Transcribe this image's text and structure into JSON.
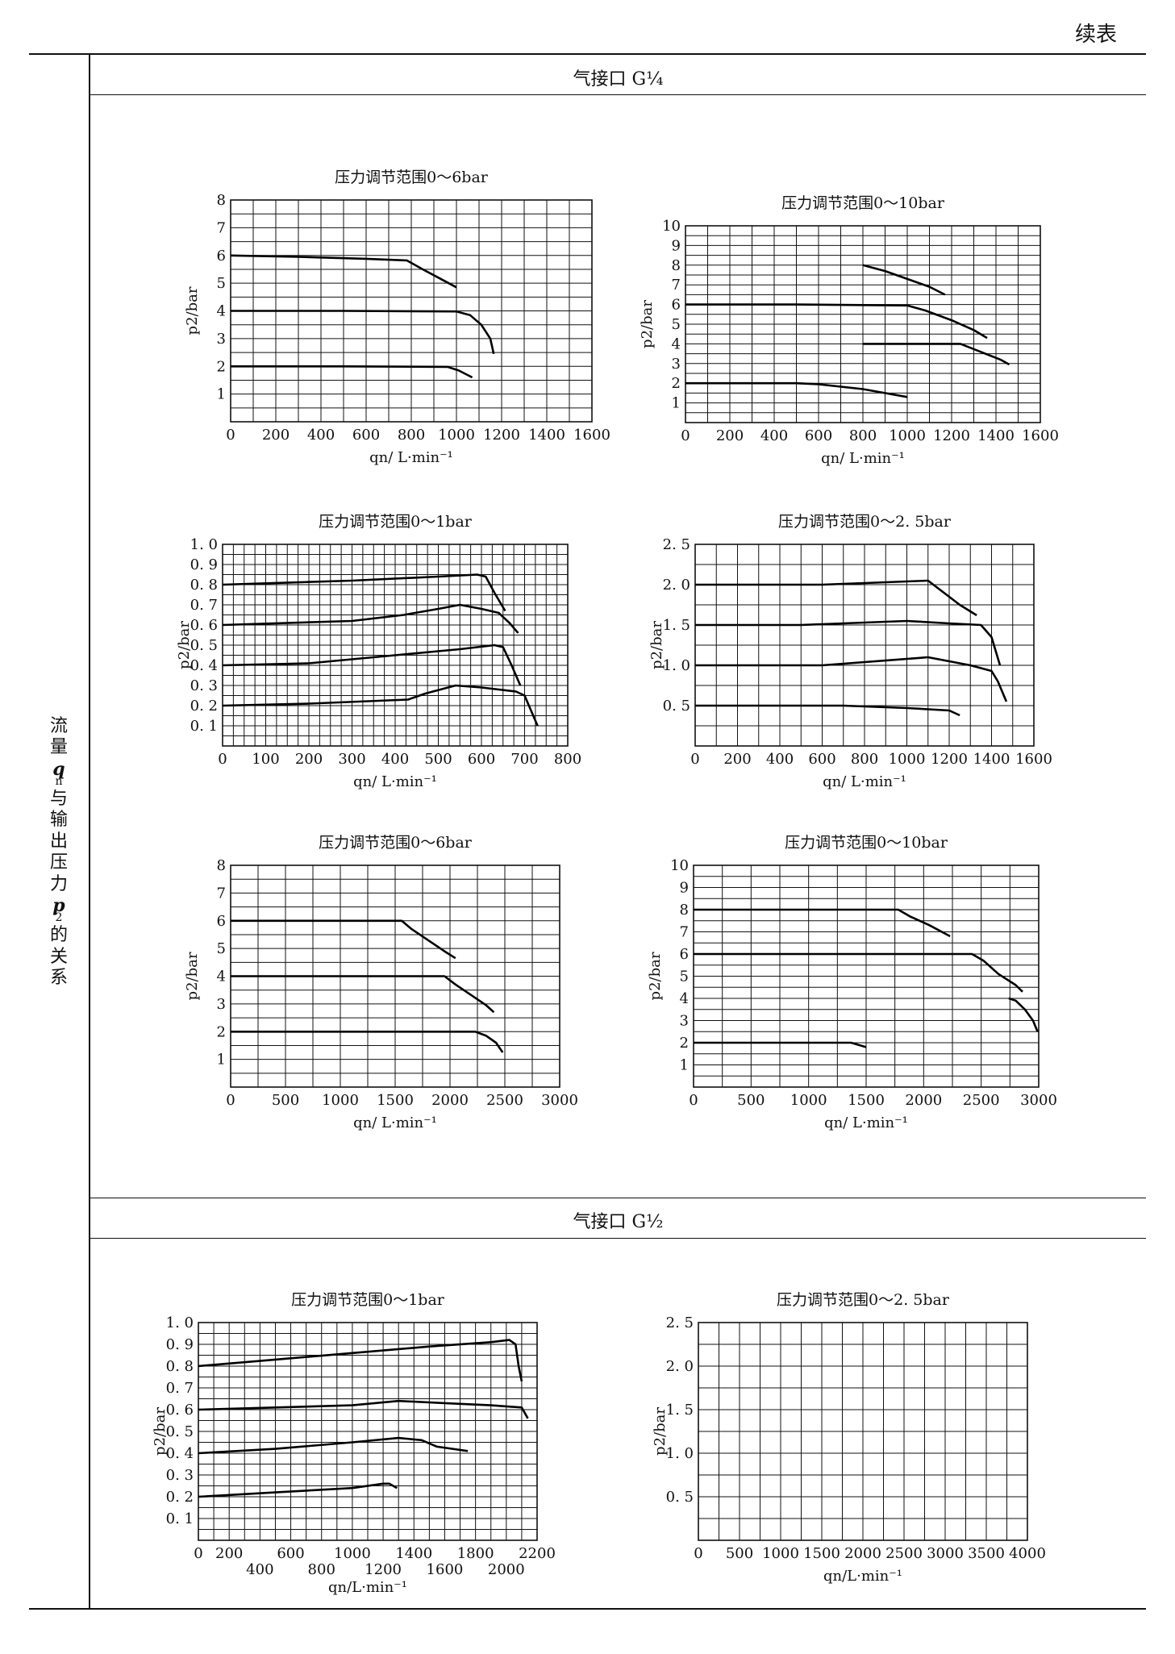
{
  "header": {
    "continued_label": "续表"
  },
  "side_label": {
    "chars": [
      "流",
      "量",
      "q",
      "n",
      "与",
      "输",
      "出",
      "压",
      "力",
      "p",
      "2",
      "的",
      "关",
      "系"
    ]
  },
  "sections": [
    {
      "title": "气接口 G¼"
    },
    {
      "title": "气接口 G½"
    }
  ],
  "chart_data": [
    {
      "type": "line",
      "title": "压力调节范围0～6bar",
      "xlabel": "qn/ L·min⁻¹",
      "ylabel": "p2/bar",
      "xlim": [
        0,
        1600
      ],
      "ylim": [
        0,
        8
      ],
      "xticks": [
        0,
        200,
        400,
        600,
        800,
        1000,
        1200,
        1400,
        1600
      ],
      "yticks": [
        1,
        2,
        3,
        4,
        5,
        6,
        7,
        8
      ],
      "ytick_labels": [
        "1",
        "2",
        "3",
        "4",
        "5",
        "6",
        "7",
        "8"
      ],
      "xgrid_step": 100,
      "ygrid_step": 0.5,
      "grid": true,
      "series": [
        {
          "points": [
            [
              0,
              6.0
            ],
            [
              300,
              5.95
            ],
            [
              600,
              5.88
            ],
            [
              780,
              5.82
            ],
            [
              850,
              5.5
            ],
            [
              920,
              5.2
            ],
            [
              1000,
              4.85
            ]
          ]
        },
        {
          "points": [
            [
              0,
              4.0
            ],
            [
              500,
              4.0
            ],
            [
              1000,
              3.98
            ],
            [
              1060,
              3.85
            ],
            [
              1110,
              3.5
            ],
            [
              1150,
              3.0
            ],
            [
              1165,
              2.45
            ]
          ]
        },
        {
          "points": [
            [
              0,
              2.0
            ],
            [
              500,
              2.0
            ],
            [
              960,
              1.98
            ],
            [
              1010,
              1.85
            ],
            [
              1070,
              1.6
            ]
          ]
        }
      ]
    },
    {
      "type": "line",
      "title": "压力调节范围0～10bar",
      "xlabel": "qn/ L·min⁻¹",
      "ylabel": "p2/bar",
      "xlim": [
        0,
        1600
      ],
      "ylim": [
        0,
        10
      ],
      "xticks": [
        0,
        200,
        400,
        600,
        800,
        1000,
        1200,
        1400,
        1600
      ],
      "yticks": [
        1,
        2,
        3,
        4,
        5,
        6,
        7,
        8,
        9,
        10
      ],
      "ytick_labels": [
        "1",
        "2",
        "3",
        "4",
        "5",
        "6",
        "7",
        "8",
        "9",
        "10"
      ],
      "xgrid_step": 100,
      "ygrid_step": 0.5,
      "grid": true,
      "series": [
        {
          "points": [
            [
              800,
              8.0
            ],
            [
              900,
              7.7
            ],
            [
              1000,
              7.3
            ],
            [
              1100,
              6.9
            ],
            [
              1170,
              6.5
            ]
          ]
        },
        {
          "points": [
            [
              0,
              6.0
            ],
            [
              500,
              6.0
            ],
            [
              1000,
              5.95
            ],
            [
              1080,
              5.7
            ],
            [
              1200,
              5.2
            ],
            [
              1300,
              4.7
            ],
            [
              1360,
              4.3
            ]
          ]
        },
        {
          "points": [
            [
              800,
              4.0
            ],
            [
              1000,
              4.0
            ],
            [
              1240,
              4.0
            ],
            [
              1330,
              3.6
            ],
            [
              1420,
              3.2
            ],
            [
              1460,
              2.95
            ]
          ]
        },
        {
          "points": [
            [
              0,
              2.0
            ],
            [
              500,
              2.0
            ],
            [
              600,
              1.95
            ],
            [
              800,
              1.7
            ],
            [
              1000,
              1.3
            ]
          ]
        }
      ]
    },
    {
      "type": "line",
      "title": "压力调节范围0～1bar",
      "xlabel": "qn/ L·min⁻¹",
      "ylabel": "p2/bar",
      "xlim": [
        0,
        800
      ],
      "ylim": [
        0,
        1.0
      ],
      "xticks": [
        0,
        100,
        200,
        300,
        400,
        500,
        600,
        700,
        800
      ],
      "yticks": [
        0.1,
        0.2,
        0.3,
        0.4,
        0.5,
        0.6,
        0.7,
        0.8,
        0.9,
        1.0
      ],
      "ytick_labels": [
        "0. 1",
        "0. 2",
        "0. 3",
        "0. 4",
        "0. 5",
        "0. 6",
        "0. 7",
        "0. 8",
        "0. 9",
        "1. 0"
      ],
      "xgrid_step": 25,
      "ygrid_step": 0.05,
      "grid": true,
      "series": [
        {
          "points": [
            [
              0,
              0.8
            ],
            [
              300,
              0.82
            ],
            [
              500,
              0.84
            ],
            [
              590,
              0.85
            ],
            [
              610,
              0.84
            ],
            [
              630,
              0.76
            ],
            [
              655,
              0.67
            ]
          ]
        },
        {
          "points": [
            [
              0,
              0.6
            ],
            [
              300,
              0.62
            ],
            [
              420,
              0.65
            ],
            [
              500,
              0.68
            ],
            [
              550,
              0.7
            ],
            [
              600,
              0.68
            ],
            [
              640,
              0.66
            ],
            [
              665,
              0.61
            ],
            [
              685,
              0.56
            ]
          ]
        },
        {
          "points": [
            [
              0,
              0.4
            ],
            [
              200,
              0.41
            ],
            [
              400,
              0.45
            ],
            [
              550,
              0.48
            ],
            [
              630,
              0.5
            ],
            [
              650,
              0.49
            ],
            [
              670,
              0.4
            ],
            [
              690,
              0.3
            ]
          ]
        },
        {
          "points": [
            [
              0,
              0.2
            ],
            [
              200,
              0.21
            ],
            [
              430,
              0.23
            ],
            [
              470,
              0.26
            ],
            [
              540,
              0.3
            ],
            [
              600,
              0.29
            ],
            [
              680,
              0.27
            ],
            [
              700,
              0.25
            ],
            [
              730,
              0.1
            ]
          ]
        }
      ]
    },
    {
      "type": "line",
      "title": "压力调节范围0～2. 5bar",
      "xlabel": "qn/ L·min⁻¹",
      "ylabel": "p2/bar",
      "xlim": [
        0,
        1600
      ],
      "ylim": [
        0,
        2.5
      ],
      "xticks": [
        0,
        200,
        400,
        600,
        800,
        1000,
        1200,
        1400,
        1600
      ],
      "yticks": [
        0.5,
        1.0,
        1.5,
        2.0,
        2.5
      ],
      "ytick_labels": [
        "0. 5",
        "1. 0",
        "1. 5",
        "2. 0",
        "2. 5"
      ],
      "xgrid_step": 100,
      "ygrid_step": 0.25,
      "grid": true,
      "series": [
        {
          "points": [
            [
              0,
              2.0
            ],
            [
              600,
              2.0
            ],
            [
              1100,
              2.05
            ],
            [
              1150,
              1.95
            ],
            [
              1250,
              1.75
            ],
            [
              1330,
              1.62
            ]
          ]
        },
        {
          "points": [
            [
              0,
              1.5
            ],
            [
              500,
              1.5
            ],
            [
              1000,
              1.55
            ],
            [
              1200,
              1.52
            ],
            [
              1350,
              1.5
            ],
            [
              1400,
              1.35
            ],
            [
              1440,
              1.0
            ]
          ]
        },
        {
          "points": [
            [
              0,
              1.0
            ],
            [
              600,
              1.0
            ],
            [
              1100,
              1.1
            ],
            [
              1300,
              1.0
            ],
            [
              1400,
              0.93
            ],
            [
              1430,
              0.8
            ],
            [
              1470,
              0.55
            ]
          ]
        },
        {
          "points": [
            [
              0,
              0.5
            ],
            [
              700,
              0.5
            ],
            [
              1000,
              0.47
            ],
            [
              1200,
              0.44
            ],
            [
              1250,
              0.38
            ]
          ]
        }
      ]
    },
    {
      "type": "line",
      "title": "压力调节范围0～6bar",
      "xlabel": "qn/ L·min⁻¹",
      "ylabel": "p2/bar",
      "xlim": [
        0,
        3000
      ],
      "ylim": [
        0,
        8
      ],
      "xticks": [
        0,
        500,
        1000,
        1500,
        2000,
        2500,
        3000
      ],
      "yticks": [
        1,
        2,
        3,
        4,
        5,
        6,
        7,
        8
      ],
      "ytick_labels": [
        "1",
        "2",
        "3",
        "4",
        "5",
        "6",
        "7",
        "8"
      ],
      "xgrid_step": 250,
      "ygrid_step": 0.5,
      "grid": true,
      "series": [
        {
          "points": [
            [
              0,
              6.0
            ],
            [
              1000,
              6.0
            ],
            [
              1560,
              6.0
            ],
            [
              1650,
              5.7
            ],
            [
              1800,
              5.3
            ],
            [
              1950,
              4.9
            ],
            [
              2050,
              4.65
            ]
          ]
        },
        {
          "points": [
            [
              0,
              4.0
            ],
            [
              1000,
              4.0
            ],
            [
              1950,
              4.0
            ],
            [
              2050,
              3.7
            ],
            [
              2200,
              3.3
            ],
            [
              2330,
              2.95
            ],
            [
              2400,
              2.7
            ]
          ]
        },
        {
          "points": [
            [
              0,
              2.0
            ],
            [
              1200,
              2.0
            ],
            [
              2230,
              2.0
            ],
            [
              2330,
              1.85
            ],
            [
              2420,
              1.6
            ],
            [
              2480,
              1.25
            ]
          ]
        }
      ]
    },
    {
      "type": "line",
      "title": "压力调节范围0～10bar",
      "xlabel": "qn/ L·min⁻¹",
      "ylabel": "p2/bar",
      "xlim": [
        0,
        3000
      ],
      "ylim": [
        0,
        10
      ],
      "xticks": [
        0,
        500,
        1000,
        1500,
        2000,
        2500,
        3000
      ],
      "yticks": [
        1,
        2,
        3,
        4,
        5,
        6,
        7,
        8,
        9,
        10
      ],
      "ytick_labels": [
        "1",
        "2",
        "3",
        "4",
        "5",
        "6",
        "7",
        "8",
        "9",
        "10"
      ],
      "xgrid_step": 250,
      "ygrid_step": 0.5,
      "grid": true,
      "series": [
        {
          "points": [
            [
              0,
              8.0
            ],
            [
              1000,
              8.0
            ],
            [
              1780,
              8.0
            ],
            [
              1880,
              7.7
            ],
            [
              2050,
              7.3
            ],
            [
              2230,
              6.8
            ]
          ]
        },
        {
          "points": [
            [
              0,
              6.0
            ],
            [
              1000,
              6.0
            ],
            [
              2420,
              6.0
            ],
            [
              2520,
              5.7
            ],
            [
              2650,
              5.1
            ],
            [
              2800,
              4.6
            ],
            [
              2860,
              4.3
            ]
          ]
        },
        {
          "points": [
            [
              2740,
              4.0
            ],
            [
              2800,
              3.9
            ],
            [
              2880,
              3.5
            ],
            [
              2950,
              3.0
            ],
            [
              2990,
              2.5
            ]
          ]
        },
        {
          "points": [
            [
              0,
              2.0
            ],
            [
              700,
              2.0
            ],
            [
              1370,
              2.0
            ],
            [
              1500,
              1.8
            ]
          ]
        }
      ]
    },
    {
      "type": "line",
      "title": "压力调节范围0～1bar",
      "xlabel": "qn/L·min⁻¹",
      "ylabel": "p2/bar",
      "xlim": [
        0,
        2200
      ],
      "ylim": [
        0,
        1.0
      ],
      "xticks": [
        0,
        200,
        400,
        600,
        800,
        1000,
        1200,
        1400,
        1600,
        1800,
        2000,
        2200
      ],
      "xtick_labels_upper": [
        "0",
        "200",
        "",
        "600",
        "",
        "1000",
        "",
        "1400",
        "",
        "1800",
        "",
        "2200"
      ],
      "xtick_labels_lower": [
        "",
        "",
        "400",
        "",
        "800",
        "",
        "1200",
        "",
        "1600",
        "",
        "2000",
        ""
      ],
      "yticks": [
        0.1,
        0.2,
        0.3,
        0.4,
        0.5,
        0.6,
        0.7,
        0.8,
        0.9,
        1.0
      ],
      "ytick_labels": [
        "0. 1",
        "0. 2",
        "0. 3",
        "0. 4",
        "0. 5",
        "0. 6",
        "0. 7",
        "0. 8",
        "0. 9",
        "1. 0"
      ],
      "xgrid_step": 100,
      "ygrid_step": 0.05,
      "grid": true,
      "series": [
        {
          "points": [
            [
              0,
              0.8
            ],
            [
              500,
              0.83
            ],
            [
              1000,
              0.86
            ],
            [
              1500,
              0.89
            ],
            [
              1900,
              0.91
            ],
            [
              2020,
              0.92
            ],
            [
              2060,
              0.9
            ],
            [
              2080,
              0.8
            ],
            [
              2100,
              0.73
            ]
          ]
        },
        {
          "points": [
            [
              0,
              0.6
            ],
            [
              500,
              0.61
            ],
            [
              1000,
              0.62
            ],
            [
              1300,
              0.64
            ],
            [
              1600,
              0.63
            ],
            [
              1900,
              0.62
            ],
            [
              2100,
              0.61
            ],
            [
              2140,
              0.56
            ]
          ]
        },
        {
          "points": [
            [
              0,
              0.4
            ],
            [
              500,
              0.42
            ],
            [
              1000,
              0.45
            ],
            [
              1300,
              0.47
            ],
            [
              1450,
              0.46
            ],
            [
              1550,
              0.43
            ],
            [
              1750,
              0.41
            ]
          ]
        },
        {
          "points": [
            [
              0,
              0.2
            ],
            [
              500,
              0.22
            ],
            [
              1000,
              0.24
            ],
            [
              1200,
              0.26
            ],
            [
              1240,
              0.26
            ],
            [
              1290,
              0.24
            ]
          ]
        }
      ]
    },
    {
      "type": "line",
      "title": "压力调节范围0～2. 5bar",
      "xlabel": "qn/L·min⁻¹",
      "ylabel": "p2/bar",
      "xlim": [
        0,
        4000
      ],
      "ylim": [
        0,
        2.5
      ],
      "xticks": [
        0,
        500,
        1000,
        1500,
        2000,
        2500,
        3000,
        3500,
        4000
      ],
      "yticks": [
        0.5,
        1.0,
        1.5,
        2.0,
        2.5
      ],
      "ytick_labels": [
        "0. 5",
        "1. 0",
        "1. 5",
        "2. 0",
        "2. 5"
      ],
      "xgrid_step": 250,
      "ygrid_step": 0.25,
      "grid": true,
      "series": []
    }
  ]
}
